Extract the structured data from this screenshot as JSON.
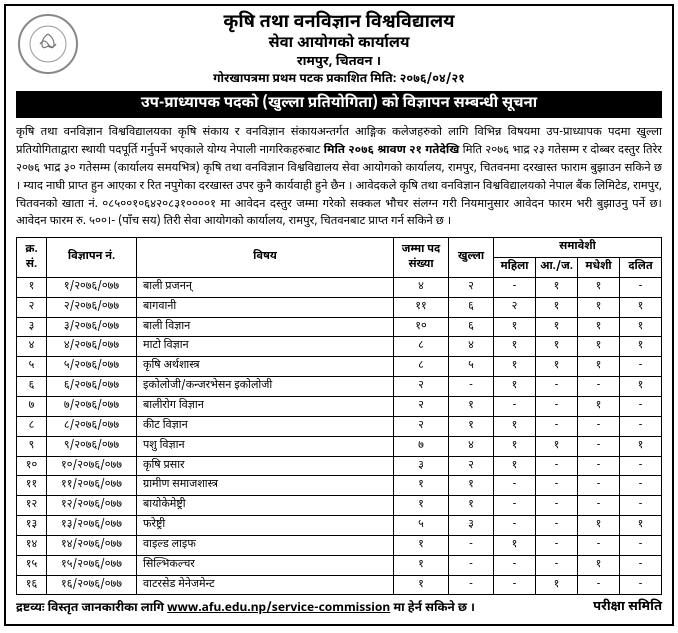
{
  "header": {
    "line1": "कृषि तथा वनविज्ञान विश्वविद्यालय",
    "line2": "सेवा आयोगको कार्यालय",
    "line3": "रामपुर, चितवन ।",
    "line4": "गोरखापत्रमा प्रथम पटक प्रकाशित मिति: २०७६/०४/२१"
  },
  "notice_title": "उप-प्राध्यापक पदको (खुल्ला प्रतियोगिता) को विज्ञापन सम्बन्धी सूचना",
  "body": {
    "p1a": "कृषि तथा वनविज्ञान विश्वविद्यालयका कृषि संकाय र वनविज्ञान संकायअन्तर्गत आङ्गिक कलेजहरुको लागि विभिन्न विषयमा उप-प्राध्यापक पदमा खुल्ला प्रतियोगिताद्वारा स्थायी पदपूर्ति गर्नुपर्ने भएकाले योग्य नेपाली नागरिकहरुबाट ",
    "p1b": "मिति २०७६ श्रावण २१ गतेदेखि",
    "p1c": " मिति २०७६ भाद्र २३  गतेसम्म र दोब्बर दस्तुर तिरेर २०७६ भाद्र ३०  गतेसम्म (कार्यालय समयभित्र) कृषि तथा वनविज्ञान विश्वविद्यालय सेवा आयोगको कार्यालय, रामपुर, चितवनमा दरखास्त फाराम बुझाउन सकिने छ । म्याद नाघी प्राप्त हुन आएका र रित नपुगेका दरखास्त उपर कुनै कार्यवाही हुने छैन । आवेदकले कृषि तथा वनविज्ञान विश्वविद्यालयको नेपाल बैंक लिमिटेड, रामपुर, चितवनको खाता नं. ०८५००१०६४२०८३१००००१ मा आवेदन दस्तुर जम्मा गरेको सक्कल भौचर संलग्न गरी नियमानुसार आवेदन फारम भरी बुझाउनु पर्ने छ। आवेदन फारम रु. ५००।- (पाँच सय) तिरी सेवा आयोगको कार्यालय, रामपुर, चितवनबाट प्राप्त गर्न सकिने छ ।"
  },
  "table": {
    "headers": {
      "sn": "क्र.\nसं.",
      "adv": "विज्ञापन नं.",
      "subject": "विषय",
      "total": "जम्मा पद\nसंख्या",
      "open": "खुल्ला",
      "inclusive": "समावेशी",
      "female": "महिला",
      "janajati": "आ./ज.",
      "madhesi": "मधेशी",
      "dalit": "दलित"
    },
    "rows": [
      {
        "sn": "१",
        "adv": "१/२०७६/०७७",
        "subject": "बाली प्रजनन्",
        "total": "४",
        "open": "२",
        "f": "-",
        "j": "१",
        "m": "१",
        "d": "-"
      },
      {
        "sn": "२",
        "adv": "२/२०७६/०७७",
        "subject": "बागवानी",
        "total": "११",
        "open": "६",
        "f": "२",
        "j": "१",
        "m": "१",
        "d": "१"
      },
      {
        "sn": "३",
        "adv": "३/२०७६/०७७",
        "subject": "बाली विज्ञान",
        "total": "१०",
        "open": "६",
        "f": "१",
        "j": "१",
        "m": "१",
        "d": "१"
      },
      {
        "sn": "४",
        "adv": "४/२०७६/०७७",
        "subject": "माटो विज्ञान",
        "total": "८",
        "open": "४",
        "f": "१",
        "j": "१",
        "m": "१",
        "d": "१"
      },
      {
        "sn": "५",
        "adv": "५/२०७६/०७७",
        "subject": "कृषि अर्थशास्त्र",
        "total": "८",
        "open": "५",
        "f": "१",
        "j": "१",
        "m": "१",
        "d": "-"
      },
      {
        "sn": "६",
        "adv": "६/२०७६/०७७",
        "subject": "इकोलोजी/कन्जरभेसन इकोलोजी",
        "total": "२",
        "open": "-",
        "f": "१",
        "j": "-",
        "m": "-",
        "d": "१"
      },
      {
        "sn": "७",
        "adv": "७/२०७६/०७७",
        "subject": "बालीरोग विज्ञान",
        "total": "२",
        "open": "१",
        "f": "-",
        "j": "-",
        "m": "१",
        "d": "-"
      },
      {
        "sn": "८",
        "adv": "८/२०७६/०७७",
        "subject": "कीट विज्ञान",
        "total": "२",
        "open": "१",
        "f": "१",
        "j": "-",
        "m": "-",
        "d": "-"
      },
      {
        "sn": "९",
        "adv": "९/२०७६/०७७",
        "subject": "पशु विज्ञान",
        "total": "७",
        "open": "४",
        "f": "१",
        "j": "१",
        "m": "-",
        "d": "१"
      },
      {
        "sn": "१०",
        "adv": "१०/२०७६/०७७",
        "subject": "कृषि प्रसार",
        "total": "३",
        "open": "२",
        "f": "१",
        "j": "-",
        "m": "-",
        "d": "-"
      },
      {
        "sn": "११",
        "adv": "११/२०७६/०७७",
        "subject": "ग्रामीण समाजशास्त्र",
        "total": "१",
        "open": "१",
        "f": "-",
        "j": "-",
        "m": "-",
        "d": "-"
      },
      {
        "sn": "१२",
        "adv": "१२/२०७६/०७७",
        "subject": "बायोकेमेष्ट्री",
        "total": "१",
        "open": "१",
        "f": "-",
        "j": "-",
        "m": "-",
        "d": "-"
      },
      {
        "sn": "१३",
        "adv": "१३/२०७६/०७७",
        "subject": "फरेष्ट्री",
        "total": "५",
        "open": "३",
        "f": "-",
        "j": "-",
        "m": "१",
        "d": "१"
      },
      {
        "sn": "१४",
        "adv": "१४/२०७६/०७७",
        "subject": "वाइल्ड लाइफ",
        "total": "१",
        "open": "-",
        "f": "१",
        "j": "-",
        "m": "-",
        "d": "-"
      },
      {
        "sn": "१५",
        "adv": "१५/२०७६/०७७",
        "subject": "सिल्भिकल्चर",
        "total": "१",
        "open": "-",
        "f": "-",
        "j": "-",
        "m": "१",
        "d": "-"
      },
      {
        "sn": "१६",
        "adv": "१६/२०७६/०७७",
        "subject": "वाटरसेड मेनेजमेन्ट",
        "total": "१",
        "open": "-",
        "f": "-",
        "j": "१",
        "m": "-",
        "d": "-"
      }
    ]
  },
  "footer": {
    "note_prefix": "द्रष्टव्यः विस्तृत जानकारीका लागि ",
    "url": "www.afu.edu.np/service-commission",
    "note_suffix": " मा हेर्न सकिने छ ।",
    "signature": "परीक्षा समिति"
  },
  "colors": {
    "border": "#000000",
    "notice_bg": "#000000",
    "notice_fg": "#ffffff"
  }
}
